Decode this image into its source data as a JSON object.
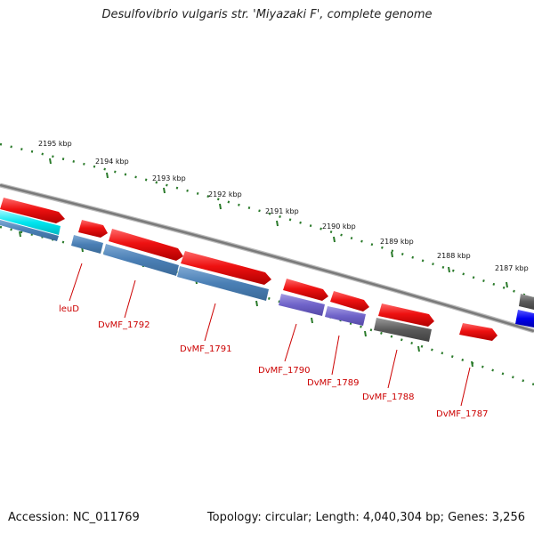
{
  "title": "Desulfovibrio vulgaris str. 'Miyazaki F', complete genome",
  "footer": {
    "accession": "Accession: NC_011769",
    "stats": "Topology: circular; Length: 4,040,304 bp; Genes: 3,256"
  },
  "colors": {
    "forward_cds": "#ee1111",
    "reverse_cds": "#4a7fb5",
    "cyan_feature": "#00e5ee",
    "purple_feature": "#6f63c9",
    "grey_feature": "#555555",
    "blue_feature": "#0000ee",
    "backbone": "#888888",
    "ticks": "#2a7a2a",
    "labels": "#cc0000"
  },
  "kbp_scale": [
    "2195 kbp",
    "2194 kbp",
    "2193 kbp",
    "2192 kbp",
    "2191 kbp",
    "2190 kbp",
    "2189 kbp",
    "2188 kbp",
    "2187 kbp"
  ],
  "gene_labels": [
    "leuD",
    "DvMF_1792",
    "DvMF_1791",
    "DvMF_1790",
    "DvMF_1789",
    "DvMF_1788",
    "DvMF_1787"
  ]
}
